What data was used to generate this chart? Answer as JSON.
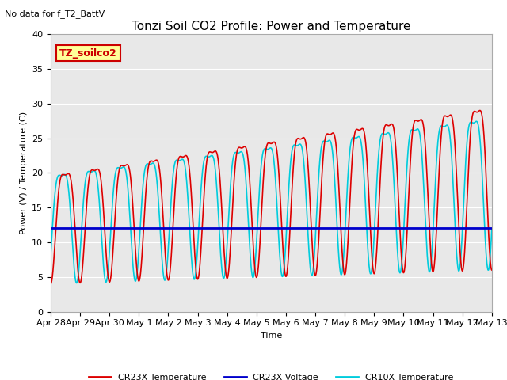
{
  "title": "Tonzi Soil CO2 Profile: Power and Temperature",
  "subtitle": "No data for f_T2_BattV",
  "ylabel": "Power (V) / Temperature (C)",
  "xlabel": "Time",
  "ylim": [
    0,
    40
  ],
  "yticks": [
    0,
    5,
    10,
    15,
    20,
    25,
    30,
    35,
    40
  ],
  "xtick_labels": [
    "Apr 28",
    "Apr 29",
    "Apr 30",
    "May 1",
    "May 2",
    "May 3",
    "May 4",
    "May 5",
    "May 6",
    "May 7",
    "May 8",
    "May 9",
    "May 10",
    "May 11",
    "May 12",
    "May 13"
  ],
  "voltage_value": 12.0,
  "cr23x_color": "#dd0000",
  "cr10x_color": "#00ccdd",
  "voltage_color": "#0000cc",
  "bg_color": "#ffffff",
  "plot_bg_color": "#e8e8e8",
  "grid_color": "#ffffff",
  "legend_box_color": "#ffff99",
  "legend_box_border": "#cc0000",
  "legend_box_text": "TZ_soilco2",
  "title_fontsize": 11,
  "label_fontsize": 8,
  "tick_fontsize": 8
}
